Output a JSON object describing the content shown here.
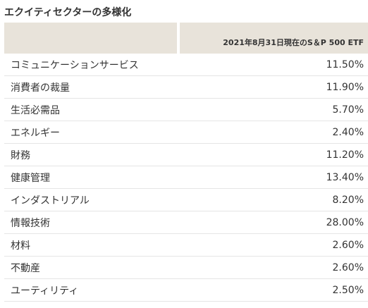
{
  "title": "エクイティセクターの多様化",
  "table": {
    "header_left": "",
    "header_right": "2021年8月31日現在のS＆P 500 ETF",
    "rows": [
      {
        "label": "コミュニケーションサービス",
        "value": "11.50%"
      },
      {
        "label": "消費者の裁量",
        "value": "11.90%"
      },
      {
        "label": "生活必需品",
        "value": "5.70%"
      },
      {
        "label": "エネルギー",
        "value": "2.40%"
      },
      {
        "label": "財務",
        "value": "11.20%"
      },
      {
        "label": "健康管理",
        "value": "13.40%"
      },
      {
        "label": "インダストリアル",
        "value": "8.20%"
      },
      {
        "label": "情報技術",
        "value": "28.00%"
      },
      {
        "label": "材料",
        "value": "2.60%"
      },
      {
        "label": "不動産",
        "value": "2.60%"
      },
      {
        "label": "ユーティリティ",
        "value": "2.50%"
      }
    ]
  },
  "colors": {
    "header_background": "#e8e3da",
    "text": "#333333",
    "row_border": "#e5e5e5"
  }
}
